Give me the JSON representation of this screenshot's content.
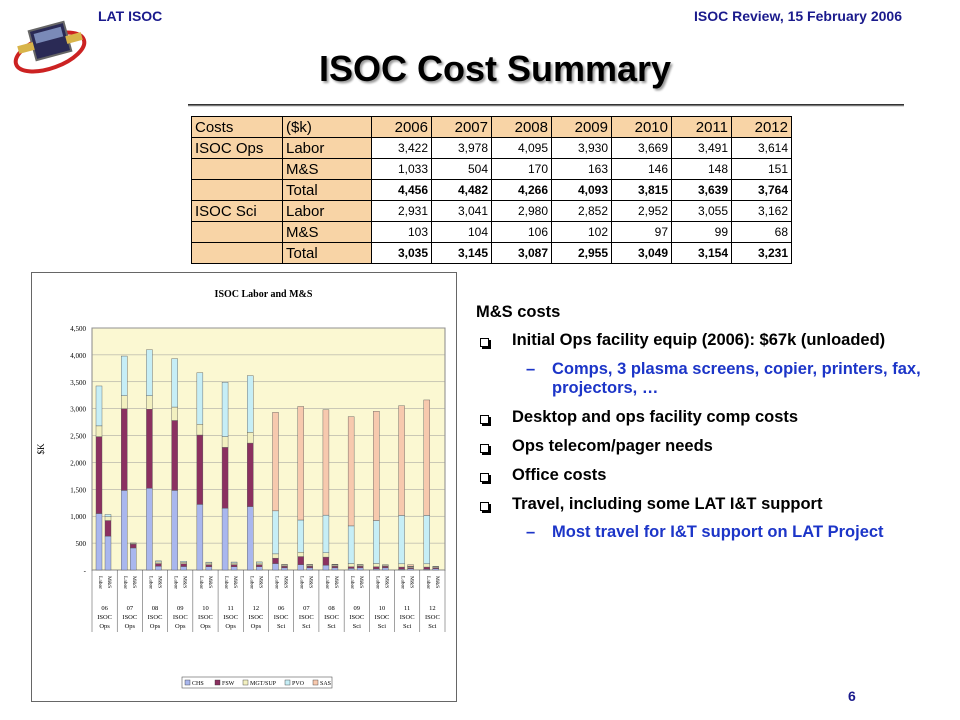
{
  "header": {
    "left": "LAT ISOC",
    "right": "ISOC Review, 15 February 2006"
  },
  "slide": {
    "title": "ISOC Cost Summary",
    "page_number": "6"
  },
  "cost_table": {
    "header": [
      "Costs",
      "($k)",
      "2006",
      "2007",
      "2008",
      "2009",
      "2010",
      "2011",
      "2012"
    ],
    "rows": [
      {
        "group": "ISOC Ops",
        "type": "Labor",
        "values": [
          "3,422",
          "3,978",
          "4,095",
          "3,930",
          "3,669",
          "3,491",
          "3,614"
        ],
        "bold": false
      },
      {
        "group": "",
        "type": "M&S",
        "values": [
          "1,033",
          "504",
          "170",
          "163",
          "146",
          "148",
          "151"
        ],
        "bold": false
      },
      {
        "group": "",
        "type": "Total",
        "values": [
          "4,456",
          "4,482",
          "4,266",
          "4,093",
          "3,815",
          "3,639",
          "3,764"
        ],
        "bold": true
      },
      {
        "group": "ISOC Sci",
        "type": "Labor",
        "values": [
          "2,931",
          "3,041",
          "2,980",
          "2,852",
          "2,952",
          "3,055",
          "3,162"
        ],
        "bold": false
      },
      {
        "group": "",
        "type": "M&S",
        "values": [
          "103",
          "104",
          "106",
          "102",
          "97",
          "99",
          "68"
        ],
        "bold": false
      },
      {
        "group": "",
        "type": "Total",
        "values": [
          "3,035",
          "3,145",
          "3,087",
          "2,955",
          "3,049",
          "3,154",
          "3,231"
        ],
        "bold": true
      }
    ]
  },
  "bullets": {
    "heading": "M&S costs",
    "items": [
      {
        "text": "Initial Ops facility equip (2006): $67k (unloaded)",
        "sub": "Comps, 3 plasma screens, copier, printers, fax, projectors, …"
      },
      {
        "text": "Desktop and ops facility comp costs"
      },
      {
        "text": "Ops telecom/pager needs"
      },
      {
        "text": "Office costs"
      },
      {
        "text": "Travel, including some LAT I&T support",
        "sub": "Most travel for I&T support on LAT Project"
      }
    ]
  },
  "chart_data": {
    "type": "bar",
    "stacked": true,
    "title": "ISOC Labor and M&S",
    "ylabel": "$K",
    "ylim": [
      0,
      4500
    ],
    "yticks": [
      "-",
      "500",
      "1,000",
      "1,500",
      "2,000",
      "2,500",
      "3,000",
      "3,500",
      "4,000",
      "4,500"
    ],
    "bar_labels": [
      "Labor",
      "M&S"
    ],
    "groups": [
      {
        "year": "06",
        "org": "ISOC",
        "kind": "Ops"
      },
      {
        "year": "07",
        "org": "ISOC",
        "kind": "Ops"
      },
      {
        "year": "08",
        "org": "ISOC",
        "kind": "Ops"
      },
      {
        "year": "09",
        "org": "ISOC",
        "kind": "Ops"
      },
      {
        "year": "10",
        "org": "ISOC",
        "kind": "Ops"
      },
      {
        "year": "11",
        "org": "ISOC",
        "kind": "Ops"
      },
      {
        "year": "12",
        "org": "ISOC",
        "kind": "Ops"
      },
      {
        "year": "06",
        "org": "ISOC",
        "kind": "Sci"
      },
      {
        "year": "07",
        "org": "ISOC",
        "kind": "Sci"
      },
      {
        "year": "08",
        "org": "ISOC",
        "kind": "Sci"
      },
      {
        "year": "09",
        "org": "ISOC",
        "kind": "Sci"
      },
      {
        "year": "10",
        "org": "ISOC",
        "kind": "Sci"
      },
      {
        "year": "11",
        "org": "ISOC",
        "kind": "Sci"
      },
      {
        "year": "12",
        "org": "ISOC",
        "kind": "Sci"
      }
    ],
    "legend_position": "bottom",
    "series": [
      {
        "name": "CHS",
        "color": "#a9b7ee",
        "labor": [
          1050,
          1480,
          1520,
          1480,
          1220,
          1150,
          1180,
          120,
          100,
          90,
          30,
          20,
          15,
          15
        ],
        "ms": [
          630,
          410,
          70,
          65,
          60,
          60,
          60,
          40,
          40,
          40,
          40,
          40,
          25,
          25
        ]
      },
      {
        "name": "FSW",
        "color": "#8b3060",
        "labor": [
          1430,
          1520,
          1470,
          1300,
          1290,
          1130,
          1180,
          100,
          150,
          150,
          30,
          40,
          40,
          40
        ],
        "ms": [
          290,
          70,
          50,
          50,
          40,
          40,
          40,
          30,
          30,
          30,
          30,
          30,
          20,
          20
        ]
      },
      {
        "name": "MGT/SUP",
        "color": "#f2f0c0",
        "labor": [
          200,
          240,
          250,
          250,
          200,
          200,
          200,
          80,
          80,
          80,
          60,
          60,
          60,
          60
        ],
        "ms": [
          70,
          15,
          30,
          30,
          30,
          30,
          30,
          20,
          20,
          20,
          20,
          20,
          15,
          15
        ]
      },
      {
        "name": "PVO",
        "color": "#c6eef6",
        "labor": [
          742,
          738,
          855,
          900,
          959,
          1011,
          1054,
          800,
          600,
          700,
          700,
          800,
          900,
          900
        ],
        "ms": [
          43,
          9,
          20,
          18,
          16,
          18,
          21,
          10,
          10,
          10,
          10,
          7,
          10,
          8
        ]
      },
      {
        "name": "SAS",
        "color": "#f7c9ae",
        "labor": [
          0,
          0,
          0,
          0,
          0,
          0,
          0,
          1831,
          2111,
          1960,
          2032,
          2032,
          2040,
          2147
        ],
        "ms": [
          0,
          0,
          0,
          0,
          0,
          0,
          0,
          3,
          4,
          6,
          2,
          0,
          29,
          0
        ]
      }
    ]
  }
}
